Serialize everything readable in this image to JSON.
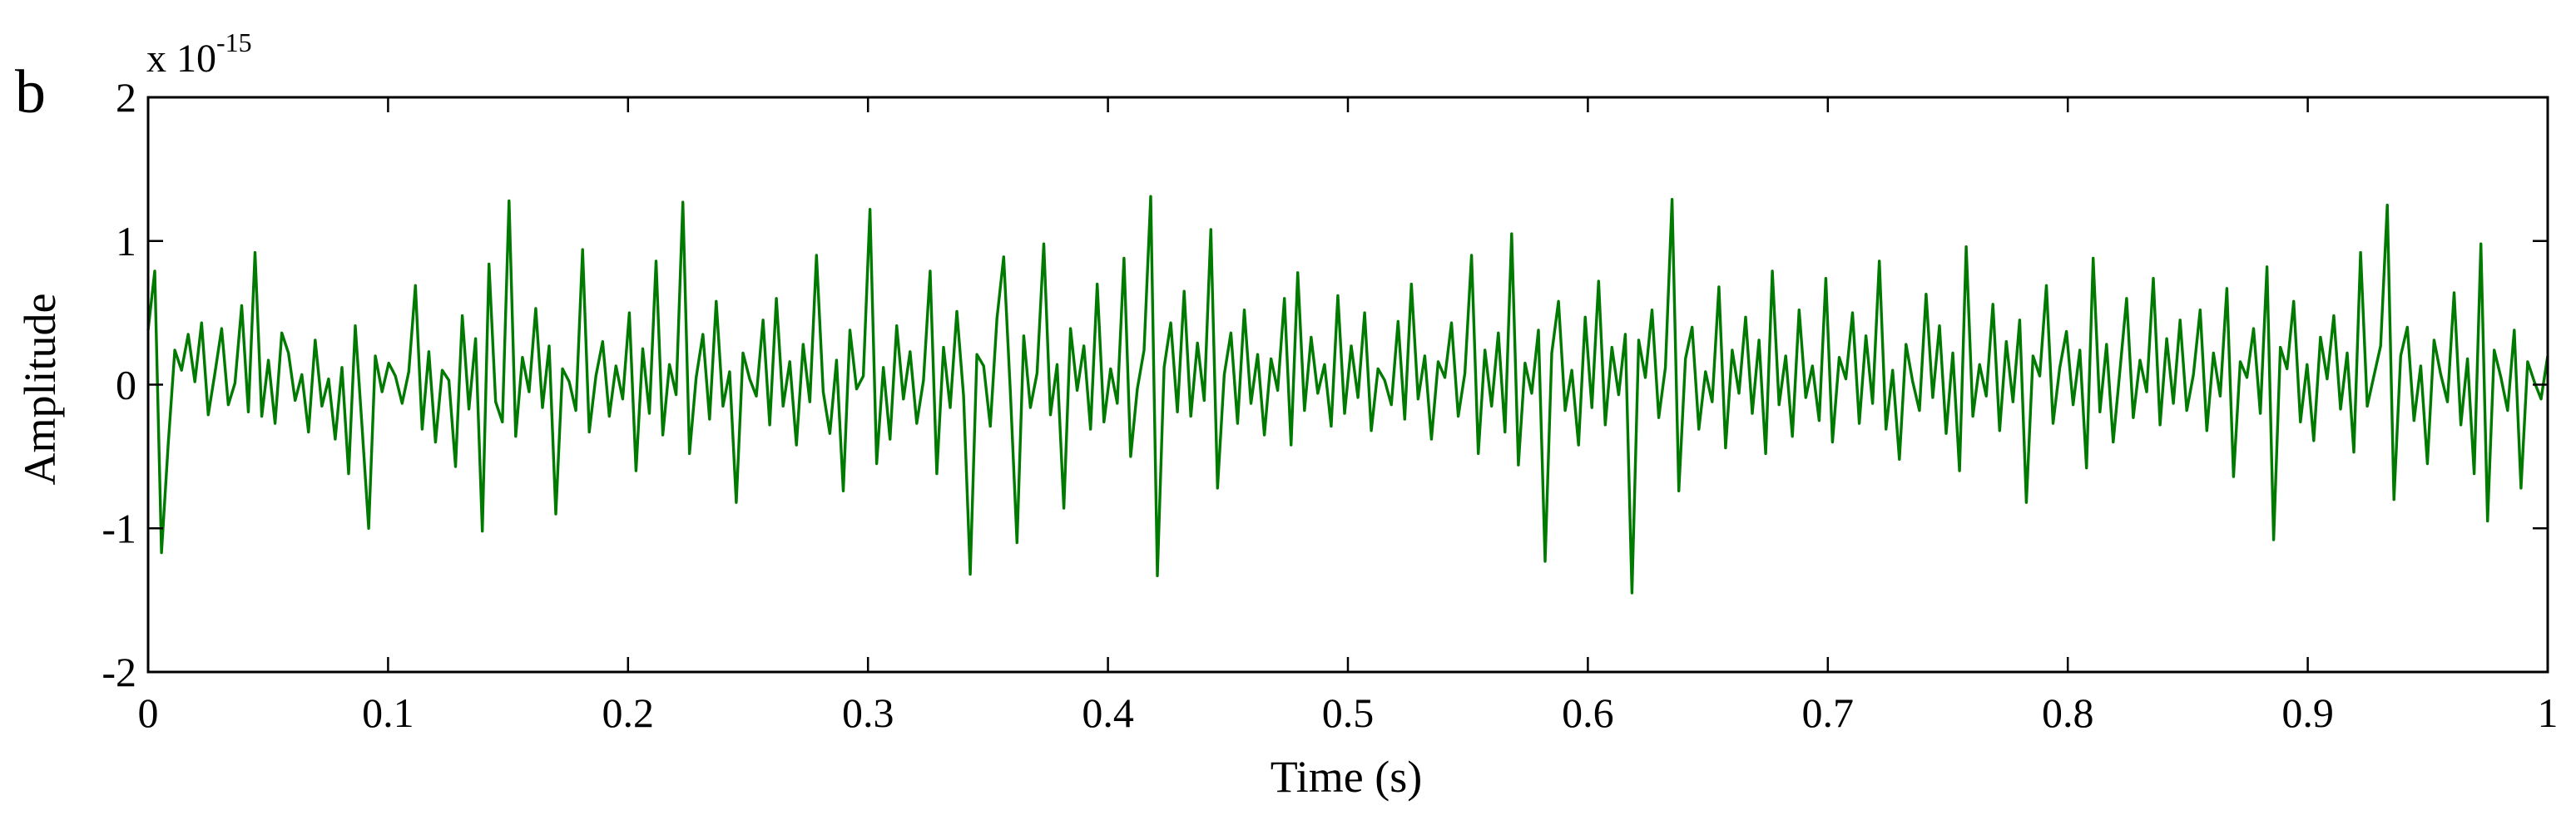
{
  "panel_label": "b",
  "chart_data": {
    "type": "line",
    "title": "",
    "xlabel": "Time (s)",
    "ylabel": "Amplitude",
    "y_scale_multiplier": "x 10",
    "y_scale_exponent": "-15",
    "xlim": [
      0,
      1
    ],
    "ylim": [
      -2,
      2
    ],
    "x_ticks": [
      "0",
      "0.1",
      "0.2",
      "0.3",
      "0.4",
      "0.5",
      "0.6",
      "0.7",
      "0.8",
      "0.9",
      "1"
    ],
    "y_ticks": [
      "-2",
      "-1",
      "0",
      "1",
      "2"
    ],
    "grid": false,
    "legend": "none",
    "series": [
      {
        "color": "#007a00",
        "x_start": 0,
        "x_end": 1,
        "values": [
          0.38,
          0.79,
          -1.17,
          -0.42,
          0.24,
          0.1,
          0.35,
          0.02,
          0.43,
          -0.21,
          0.08,
          0.39,
          -0.14,
          0.01,
          0.55,
          -0.19,
          0.92,
          -0.22,
          0.17,
          -0.27,
          0.36,
          0.22,
          -0.11,
          0.07,
          -0.33,
          0.31,
          -0.15,
          0.04,
          -0.38,
          0.12,
          -0.62,
          0.41,
          -0.29,
          -1.0,
          0.2,
          -0.05,
          0.15,
          0.06,
          -0.13,
          0.09,
          0.69,
          -0.31,
          0.23,
          -0.4,
          0.1,
          0.03,
          -0.57,
          0.48,
          -0.17,
          0.32,
          -1.02,
          0.84,
          -0.12,
          -0.26,
          1.28,
          -0.36,
          0.19,
          -0.05,
          0.53,
          -0.16,
          0.27,
          -0.9,
          0.11,
          0.02,
          -0.18,
          0.94,
          -0.33,
          0.06,
          0.3,
          -0.22,
          0.13,
          -0.1,
          0.5,
          -0.6,
          0.25,
          -0.2,
          0.86,
          -0.35,
          0.14,
          -0.07,
          1.27,
          -0.48,
          0.05,
          0.35,
          -0.24,
          0.58,
          -0.15,
          0.09,
          -0.82,
          0.22,
          0.04,
          -0.08,
          0.45,
          -0.28,
          0.6,
          -0.15,
          0.16,
          -0.42,
          0.28,
          -0.12,
          0.9,
          -0.05,
          -0.34,
          0.17,
          -0.74,
          0.38,
          -0.03,
          0.06,
          1.22,
          -0.55,
          0.12,
          -0.38,
          0.41,
          -0.1,
          0.23,
          -0.27,
          0.03,
          0.79,
          -0.62,
          0.26,
          -0.16,
          0.51,
          -0.08,
          -1.32,
          0.21,
          0.13,
          -0.29,
          0.46,
          0.89,
          -0.05,
          -1.1,
          0.34,
          -0.16,
          0.08,
          0.98,
          -0.21,
          0.14,
          -0.86,
          0.39,
          -0.04,
          0.27,
          -0.31,
          0.7,
          -0.26,
          0.11,
          -0.13,
          0.88,
          -0.5,
          -0.03,
          0.24,
          1.31,
          -1.33,
          0.12,
          0.43,
          -0.19,
          0.65,
          -0.22,
          0.29,
          -0.11,
          1.08,
          -0.72,
          0.07,
          0.36,
          -0.27,
          0.52,
          -0.13,
          0.21,
          -0.35,
          0.18,
          -0.04,
          0.6,
          -0.42,
          0.78,
          -0.18,
          0.33,
          -0.06,
          0.14,
          -0.29,
          0.62,
          -0.2,
          0.27,
          -0.09,
          0.5,
          -0.32,
          0.11,
          0.03,
          -0.14,
          0.44,
          -0.24,
          0.7,
          -0.1,
          0.2,
          -0.38,
          0.16,
          0.05,
          0.43,
          -0.22,
          0.08,
          0.9,
          -0.48,
          0.24,
          -0.15,
          0.36,
          -0.33,
          1.05,
          -0.56,
          0.15,
          -0.06,
          0.38,
          -1.23,
          0.22,
          0.58,
          -0.18,
          0.1,
          -0.42,
          0.47,
          -0.16,
          0.72,
          -0.28,
          0.26,
          -0.07,
          0.35,
          -1.45,
          0.31,
          0.05,
          0.52,
          -0.23,
          0.12,
          1.29,
          -0.74,
          0.18,
          0.4,
          -0.31,
          0.09,
          -0.12,
          0.68,
          -0.44,
          0.24,
          -0.06,
          0.47,
          -0.2,
          0.31,
          -0.48,
          0.79,
          -0.14,
          0.2,
          -0.36,
          0.52,
          -0.09,
          0.13,
          -0.25,
          0.74,
          -0.4,
          0.19,
          0.04,
          0.5,
          -0.27,
          0.34,
          -0.13,
          0.86,
          -0.31,
          0.1,
          -0.52,
          0.28,
          0.02,
          -0.18,
          0.63,
          -0.09,
          0.41,
          -0.34,
          0.22,
          -0.6,
          0.96,
          -0.22,
          0.14,
          -0.08,
          0.56,
          -0.32,
          0.3,
          -0.12,
          0.45,
          -0.82,
          0.2,
          0.06,
          0.69,
          -0.27,
          0.12,
          0.37,
          -0.14,
          0.24,
          -0.58,
          0.88,
          -0.19,
          0.28,
          -0.4,
          0.1,
          0.6,
          -0.23,
          0.17,
          -0.05,
          0.74,
          -0.28,
          0.32,
          -0.13,
          0.45,
          -0.18,
          0.07,
          0.52,
          -0.32,
          0.22,
          -0.08,
          0.67,
          -0.64,
          0.16,
          0.05,
          0.39,
          -0.2,
          0.82,
          -1.08,
          0.26,
          0.11,
          0.58,
          -0.26,
          0.14,
          -0.39,
          0.33,
          0.04,
          0.48,
          -0.17,
          0.22,
          -0.47,
          0.92,
          -0.15,
          0.06,
          0.27,
          1.25,
          -0.8,
          0.2,
          0.4,
          -0.25,
          0.13,
          -0.55,
          0.31,
          0.07,
          -0.12,
          0.64,
          -0.28,
          0.18,
          -0.62,
          0.98,
          -0.95,
          0.24,
          0.05,
          -0.18,
          0.38,
          -0.72,
          0.16,
          0.02,
          -0.1,
          0.2
        ]
      }
    ]
  }
}
